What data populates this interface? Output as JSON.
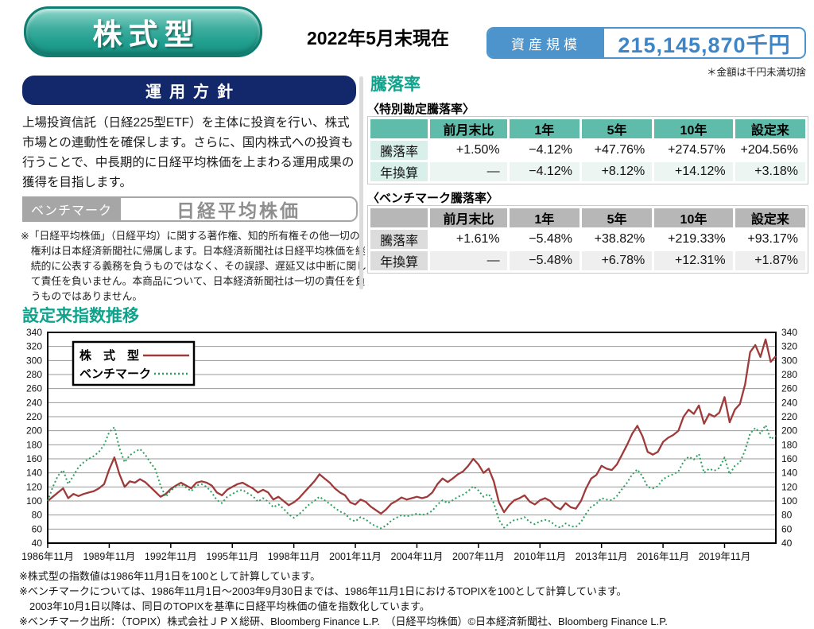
{
  "header": {
    "category_label": "株式型",
    "as_of": "2022年5月末現在",
    "aum_label": "資産規模",
    "aum_value": "215,145,870千円",
    "aum_note": "＊金額は千円未満切捨"
  },
  "policy": {
    "title": "運用方針",
    "body": "上場投資信託（日経225型ETF）を主体に投資を行い、株式市場との連動性を確保します。さらに、国内株式への投資も行うことで、中長期的に日経平均株価を上まわる運用成果の獲得を目指します。",
    "benchmark_label": "ベンチマーク",
    "benchmark_value": "日経平均株価",
    "benchmark_note": "※「日経平均株価」（日経平均）に関する著作権、知的所有権その他一切の権利は日本経済新聞社に帰属します。日本経済新聞社は日経平均株価を継続的に公表する義務を負うものではなく、その誤謬、遅延又は中断に関して責任を負いません。本商品について、日本経済新聞社は一切の責任を負うものではありません。"
  },
  "performance": {
    "title": "騰落率",
    "tables": [
      {
        "caption": "〈特別勘定騰落率〉",
        "theme": "teal",
        "columns": [
          "",
          "前月末比",
          "1年",
          "5年",
          "10年",
          "設定来"
        ],
        "rows": [
          {
            "label": "騰落率",
            "values": [
              "+1.50%",
              "−4.12%",
              "+47.76%",
              "+274.57%",
              "+204.56%"
            ]
          },
          {
            "label": "年換算",
            "values": [
              "—",
              "−4.12%",
              "+8.12%",
              "+14.12%",
              "+3.18%"
            ]
          }
        ]
      },
      {
        "caption": "〈ベンチマーク騰落率〉",
        "theme": "gray",
        "columns": [
          "",
          "前月末比",
          "1年",
          "5年",
          "10年",
          "設定来"
        ],
        "rows": [
          {
            "label": "騰落率",
            "values": [
              "+1.61%",
              "−5.48%",
              "+38.82%",
              "+219.33%",
              "+93.17%"
            ]
          },
          {
            "label": "年換算",
            "values": [
              "—",
              "−5.48%",
              "+6.78%",
              "+12.31%",
              "+1.87%"
            ]
          }
        ]
      }
    ]
  },
  "chart_title": "設定来指数推移",
  "chart_data": {
    "type": "line",
    "title": "設定来指数推移",
    "ylim": [
      40,
      340
    ],
    "ytick_step": 20,
    "grid": "horizontal",
    "legend_position": "top-left",
    "x_start_year": 1986.92,
    "x_step_years": 0.25,
    "x_tick_every": 12,
    "x_tick_labels": [
      "1986年11月",
      "1989年11月",
      "1992年11月",
      "1995年11月",
      "1998年11月",
      "2001年11月",
      "2004年11月",
      "2007年11月",
      "2010年11月",
      "2013年11月",
      "2016年11月",
      "2019年11月"
    ],
    "series": [
      {
        "name": "株　式　型",
        "color": "#9e3a3a",
        "style": "solid",
        "values": [
          100,
          106,
          112,
          118,
          104,
          110,
          107,
          110,
          112,
          114,
          118,
          124,
          145,
          162,
          138,
          120,
          128,
          126,
          131,
          127,
          120,
          113,
          106,
          110,
          117,
          122,
          126,
          122,
          118,
          126,
          128,
          126,
          122,
          112,
          108,
          116,
          120,
          124,
          126,
          122,
          118,
          112,
          116,
          112,
          102,
          106,
          100,
          94,
          98,
          104,
          112,
          120,
          128,
          138,
          132,
          126,
          118,
          112,
          108,
          98,
          95,
          102,
          99,
          92,
          87,
          82,
          88,
          96,
          100,
          105,
          102,
          104,
          106,
          104,
          106,
          112,
          124,
          132,
          127,
          132,
          138,
          142,
          150,
          160,
          152,
          140,
          146,
          128,
          98,
          84,
          94,
          101,
          104,
          108,
          99,
          95,
          101,
          104,
          100,
          92,
          88,
          97,
          91,
          89,
          100,
          118,
          132,
          137,
          150,
          146,
          144,
          152,
          166,
          180,
          196,
          207,
          192,
          170,
          166,
          170,
          184,
          190,
          194,
          200,
          220,
          230,
          224,
          236,
          210,
          224,
          220,
          226,
          248,
          212,
          230,
          238,
          266,
          312,
          322,
          305,
          330,
          298,
          306
        ]
      },
      {
        "name": "ベンチマーク",
        "color": "#2ca05f",
        "style": "dotted",
        "values": [
          100,
          120,
          136,
          144,
          124,
          136,
          148,
          155,
          160,
          164,
          170,
          180,
          198,
          205,
          175,
          155,
          165,
          170,
          174,
          166,
          155,
          145,
          122,
          106,
          115,
          120,
          124,
          119,
          114,
          122,
          124,
          120,
          112,
          101,
          97,
          106,
          110,
          114,
          116,
          111,
          107,
          99,
          104,
          99,
          91,
          95,
          89,
          81,
          76,
          81,
          88,
          95,
          100,
          106,
          101,
          96,
          90,
          85,
          82,
          74,
          71,
          77,
          74,
          68,
          64,
          61,
          65,
          72,
          76,
          80,
          78,
          80,
          82,
          80,
          82,
          86,
          95,
          101,
          97,
          101,
          106,
          109,
          114,
          121,
          115,
          106,
          110,
          97,
          73,
          62,
          68,
          73,
          74,
          77,
          70,
          67,
          71,
          73,
          71,
          65,
          62,
          68,
          64,
          63,
          70,
          82,
          92,
          96,
          104,
          102,
          101,
          107,
          117,
          126,
          138,
          145,
          135,
          120,
          118,
          121,
          131,
          135,
          138,
          142,
          156,
          163,
          159,
          167,
          140,
          146,
          143,
          147,
          162,
          138,
          150,
          155,
          172,
          196,
          204,
          196,
          208,
          188,
          193
        ]
      }
    ]
  },
  "footnotes": [
    "※株式型の指数値は1986年11月1日を100として計算しています。",
    "※ベンチマークについては、1986年11月1日～2003年9月30日までは、1986年11月1日におけるTOPIXを100として計算しています。",
    "　2003年10月1日以降は、同日のTOPIXを基準に日経平均株価の値を指数化しています。",
    "※ベンチマーク出所：（TOPIX）株式会社ＪＰＸ総研、Bloomberg Finance L.P.　（日経平均株価）©日本経済新聞社、Bloomberg Finance L.P."
  ],
  "colors": {
    "accent_teal": "#0fa38d",
    "pill_teal": "#2aa192",
    "navy_header": "#13276b",
    "aum_blue": "#4d94cc",
    "aum_value_blue": "#3d85c6",
    "table1_header": "#5fbcab",
    "table1_label": "#d9efe9",
    "table2_header": "#b7b7b7",
    "table2_label": "#dcdcdc",
    "series_fund": "#9e3a3a",
    "series_benchmark": "#2ca05f"
  }
}
